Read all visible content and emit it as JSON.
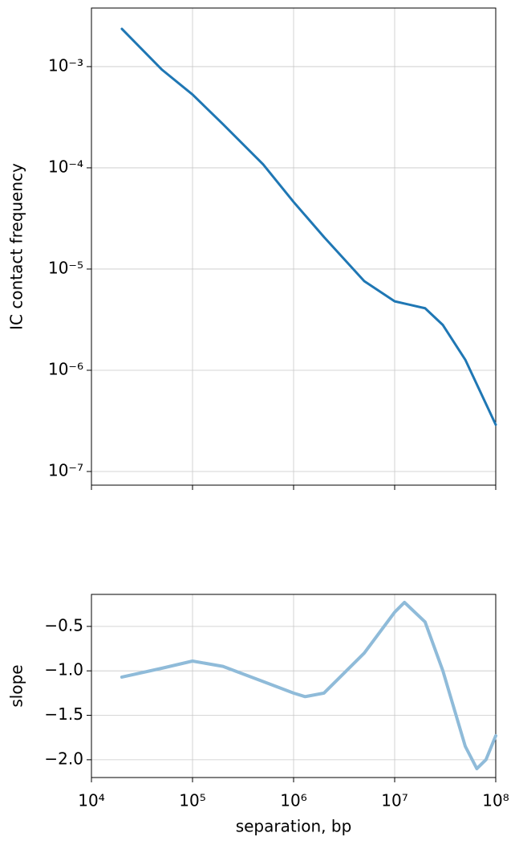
{
  "chart_data": [
    {
      "type": "line",
      "xscale": "log",
      "yscale": "log",
      "grid": true,
      "ylabel": "IC contact frequency",
      "x": [
        20000,
        50000,
        100000,
        200000,
        500000,
        1000000,
        2000000,
        5000000,
        10000000,
        20000000,
        30000000,
        50000000,
        100000000
      ],
      "series": [
        {
          "color": "#1f77b4",
          "values": [
            0.00236,
            0.00093,
            0.00053,
            0.00027,
            0.000108,
            4.6e-05,
            2.07e-05,
            7.6e-06,
            4.8e-06,
            4.1e-06,
            2.8e-06,
            1.27e-06,
            2.9e-07
          ]
        }
      ],
      "xlim": [
        10000,
        100000000
      ],
      "ylim": [
        7.33e-08,
        0.00379
      ],
      "yticks": [
        {
          "value": 0.001,
          "label": "10⁻³"
        },
        {
          "value": 0.0001,
          "label": "10⁻⁴"
        },
        {
          "value": 1e-05,
          "label": "10⁻⁵"
        },
        {
          "value": 1e-06,
          "label": "10⁻⁶"
        },
        {
          "value": 1e-07,
          "label": "10⁻⁷"
        }
      ]
    },
    {
      "type": "line",
      "xscale": "log",
      "grid": true,
      "xlabel": "separation, bp",
      "ylabel": "slope",
      "x": [
        20000,
        50000,
        100000,
        200000,
        500000,
        1000000,
        1300000,
        2000000,
        5000000,
        10000000,
        12500000,
        20000000,
        30000000,
        50000000,
        65000000,
        80000000,
        100000000
      ],
      "series": [
        {
          "color": "#8fbbd9",
          "values": [
            -1.07,
            -0.97,
            -0.89,
            -0.95,
            -1.12,
            -1.25,
            -1.29,
            -1.25,
            -0.8,
            -0.34,
            -0.23,
            -0.45,
            -1.0,
            -1.85,
            -2.1,
            -2.0,
            -1.73
          ]
        }
      ],
      "xlim": [
        10000,
        100000000
      ],
      "ylim": [
        -2.2,
        -0.14
      ],
      "yticks": [
        {
          "value": -0.5,
          "label": "−0.5"
        },
        {
          "value": -1.0,
          "label": "−1.0"
        },
        {
          "value": -1.5,
          "label": "−1.5"
        },
        {
          "value": -2.0,
          "label": "−2.0"
        }
      ],
      "xticks": [
        {
          "value": 10000,
          "label": "10⁴"
        },
        {
          "value": 100000,
          "label": "10⁵"
        },
        {
          "value": 1000000,
          "label": "10⁶"
        },
        {
          "value": 10000000,
          "label": "10⁷"
        },
        {
          "value": 100000000,
          "label": "10⁸"
        }
      ]
    }
  ]
}
